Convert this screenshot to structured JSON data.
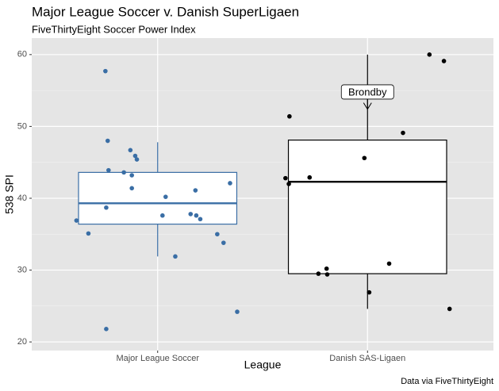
{
  "chart_data": {
    "type": "boxplot",
    "title": "Major League Soccer v. Danish SuperLigaen",
    "subtitle": "FiveThirtyEight Soccer Power Index",
    "x_label": "League",
    "y_label": "538 SPI",
    "caption": "Data via FiveThirtyEight",
    "xlim": [
      0.4,
      2.6
    ],
    "ylim": [
      18.8,
      62.3
    ],
    "xticks": [
      {
        "value": 1,
        "label": "Major League Soccer"
      },
      {
        "value": 2,
        "label": "Danish SAS-Ligaen"
      }
    ],
    "yticks": [
      20,
      30,
      40,
      50,
      60
    ],
    "yminor": [
      25,
      35,
      45,
      55
    ],
    "grid": true,
    "boxes": [
      {
        "color": "#3a6ea5",
        "min": 31.9,
        "q1": 36.4,
        "median": 39.3,
        "q3": 43.6,
        "max": 47.8
      },
      {
        "color": "#000000",
        "min": 24.6,
        "q1": 29.5,
        "median": 42.3,
        "q3": 48.1,
        "max": 60.0
      }
    ],
    "series": [
      {
        "color": "#3a6ea5",
        "x": [
          0.751,
          0.762,
          0.87,
          0.893,
          0.901,
          0.766,
          0.839,
          0.877,
          1.345,
          0.877,
          1.18,
          1.038,
          0.755,
          0.613,
          1.023,
          1.157,
          1.184,
          1.203,
          0.67,
          1.284,
          1.314,
          1.084,
          1.379,
          0.755
        ],
        "values": [
          57.7,
          48.0,
          46.7,
          45.9,
          45.4,
          43.9,
          43.6,
          43.2,
          42.1,
          41.4,
          41.1,
          40.2,
          38.7,
          36.9,
          37.6,
          37.8,
          37.6,
          37.1,
          35.1,
          35.0,
          33.8,
          31.9,
          24.2,
          21.8
        ]
      },
      {
        "color": "#000000",
        "x": [
          2.295,
          2.364,
          1.628,
          2.169,
          1.985,
          1.724,
          1.609,
          1.625,
          2.103,
          1.805,
          1.766,
          1.808,
          2.008,
          2.391
        ],
        "values": [
          60.0,
          59.1,
          51.4,
          49.1,
          45.6,
          42.9,
          42.8,
          42.0,
          30.9,
          30.2,
          29.5,
          29.4,
          26.9,
          24.6
        ]
      }
    ],
    "annotation": {
      "text": "Brondby",
      "x": 2,
      "y": 54.8,
      "arrow_to": 52.4
    }
  }
}
